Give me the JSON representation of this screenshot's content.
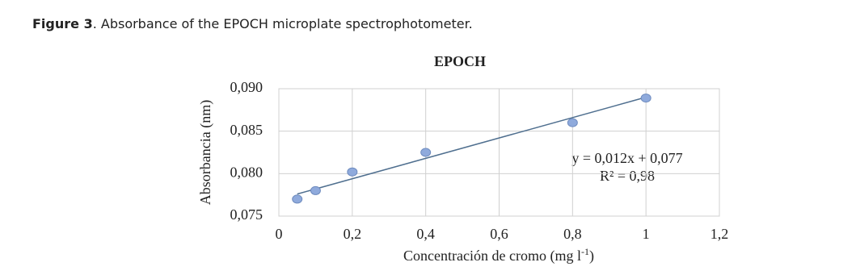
{
  "caption": {
    "label": "Figure 3",
    "text": ". Absorbance of the EPOCH microplate spectrophotometer."
  },
  "chart_data": {
    "type": "scatter",
    "title": "EPOCH",
    "x_label": [
      "Concentración de cromo (mg l",
      "-1",
      ")"
    ],
    "y_label": "Absorbancia (nm)",
    "x": [
      0.05,
      0.1,
      0.2,
      0.4,
      0.8,
      1
    ],
    "values": [
      0.077,
      0.078,
      0.0802,
      0.0825,
      0.086,
      0.0889
    ],
    "color": "#8faadc",
    "xlim": [
      0,
      1.2
    ],
    "xticks": [
      0,
      {
        "value": 0.2,
        "label": "0,2"
      },
      {
        "value": 0.4,
        "label": "0,4"
      },
      {
        "value": 0.6,
        "label": "0,6"
      },
      {
        "value": 0.8,
        "label": "0,8"
      },
      1,
      {
        "value": 1.2,
        "label": "1,2"
      }
    ],
    "ylim": [
      0.075,
      0.09
    ],
    "yticks": [
      {
        "value": 0.075,
        "label": "0,075"
      },
      {
        "value": 0.08,
        "label": "0,080"
      },
      {
        "value": 0.085,
        "label": "0,085"
      },
      {
        "value": 0.09,
        "label": "0,090"
      }
    ],
    "grid": true,
    "trendline": {
      "slope": 0.012,
      "intercept": 0.077,
      "color": "#4f6f8f",
      "annotations": [
        "y = 0,012x + 0,077",
        "R² = 0,98"
      ]
    }
  }
}
